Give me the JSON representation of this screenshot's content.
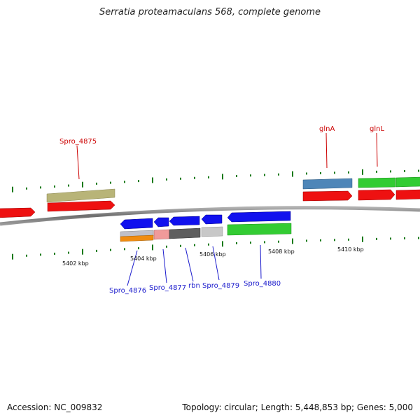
{
  "title": "Serratia proteamaculans 568, complete genome",
  "footer": {
    "accession": "Accession: NC_009832",
    "topology": "Topology: circular; Length: 5,448,853 bp; Genes: 5,000"
  },
  "colors": {
    "backbone": "#7a7a7a",
    "tick": "#1a7a1a",
    "label_forward": "#cc0000",
    "label_reverse": "#1a1acc"
  },
  "ruler_labels": [
    "5402 kbp",
    "5404 kbp",
    "5406 kbp",
    "5408 kbp",
    "5410 kbp"
  ],
  "gene_labels": {
    "forward": [
      "Spro_4875",
      "glnA",
      "glnL"
    ],
    "reverse": [
      "Spro_4876",
      "Spro_4877",
      "rbn",
      "Spro_4879",
      "Spro_4880"
    ]
  }
}
